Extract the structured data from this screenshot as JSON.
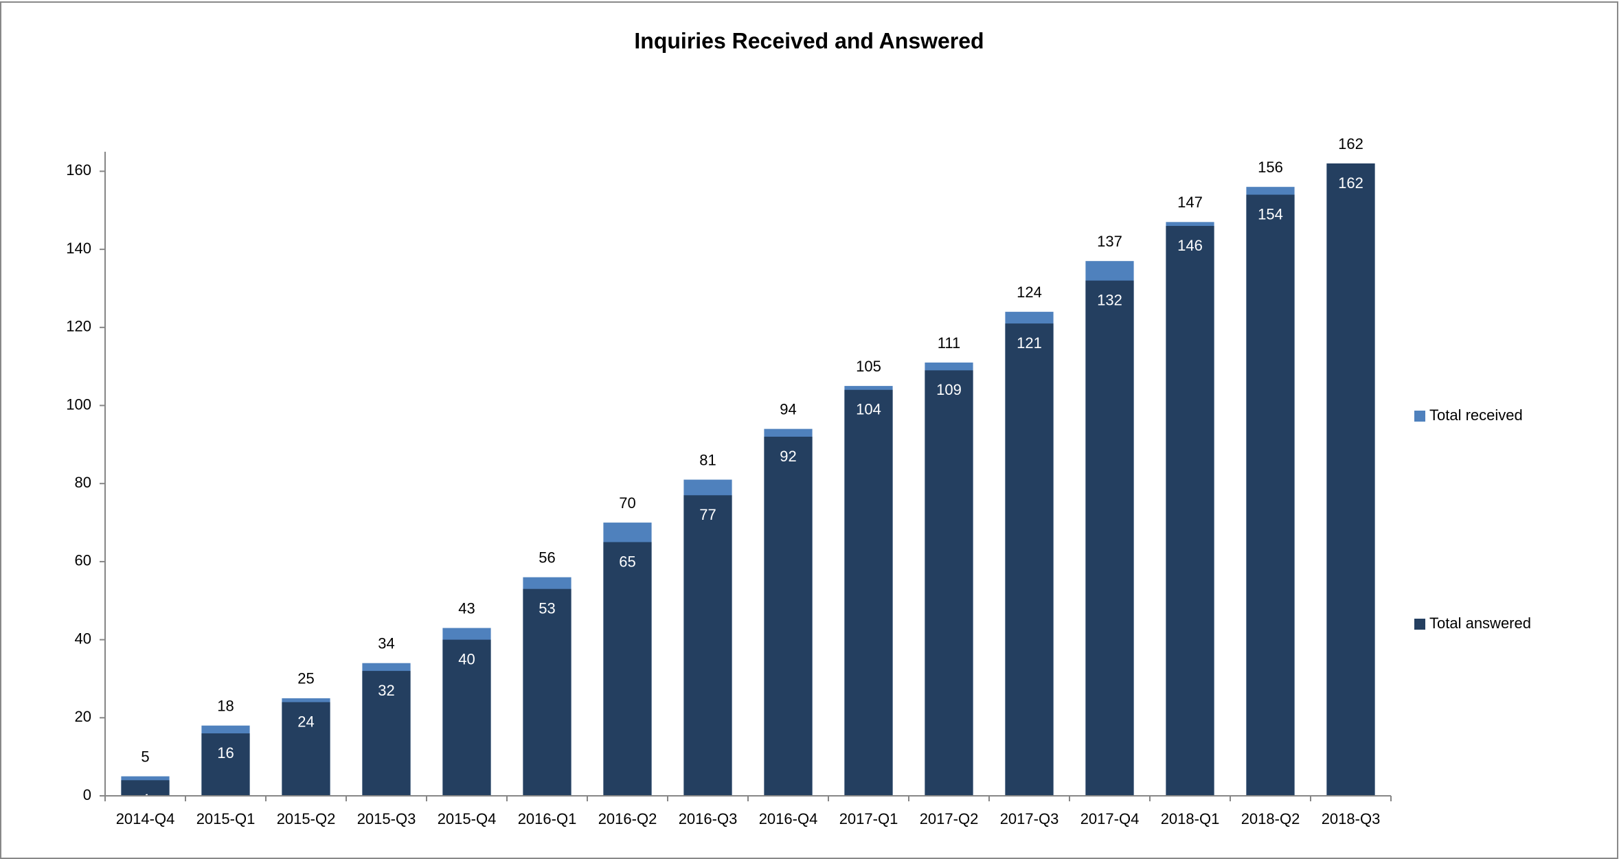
{
  "chart_data": {
    "type": "bar",
    "title": "Inquiries Received and Answered",
    "categories": [
      "2014-Q4",
      "2015-Q1",
      "2015-Q2",
      "2015-Q3",
      "2015-Q4",
      "2016-Q1",
      "2016-Q2",
      "2016-Q3",
      "2016-Q4",
      "2017-Q1",
      "2017-Q2",
      "2017-Q3",
      "2017-Q4",
      "2018-Q1",
      "2018-Q2",
      "2018-Q3"
    ],
    "series": [
      {
        "name": "Total received",
        "color": "#4f81bd",
        "values": [
          5,
          18,
          25,
          34,
          43,
          56,
          70,
          81,
          94,
          105,
          111,
          124,
          137,
          147,
          156,
          162
        ]
      },
      {
        "name": "Total answered",
        "color": "#243f60",
        "values": [
          4,
          16,
          24,
          32,
          40,
          53,
          65,
          77,
          92,
          104,
          109,
          121,
          132,
          146,
          154,
          162
        ]
      }
    ],
    "ylim": [
      0,
      165
    ],
    "yticks": [
      0,
      20,
      40,
      60,
      80,
      100,
      120,
      140,
      160
    ],
    "legend": "right"
  }
}
